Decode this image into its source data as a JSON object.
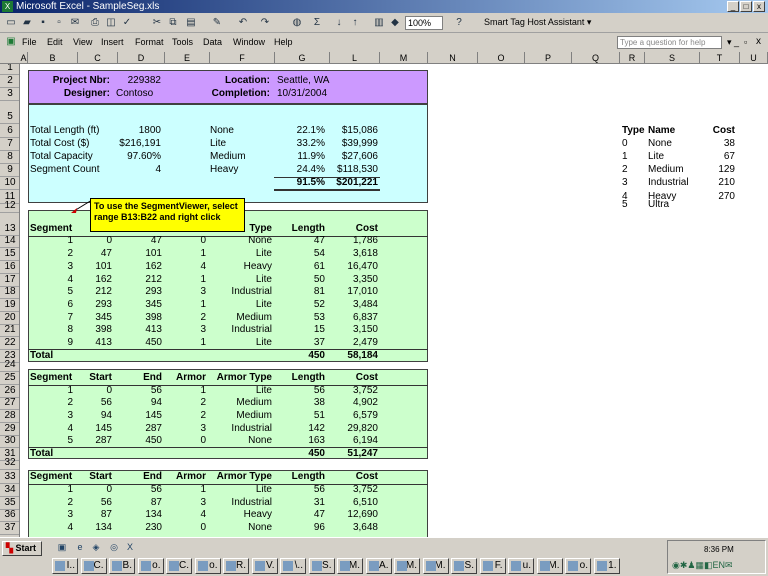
{
  "window": {
    "title": "Microsoft Excel - SampleSeg.xls",
    "zoom": "100%",
    "smart_tag": "Smart Tag Host Assistant ▾",
    "help_placeholder": "Type a question for help"
  },
  "menu": [
    "File",
    "Edit",
    "View",
    "Insert",
    "Format",
    "Tools",
    "Data",
    "Window",
    "Help"
  ],
  "columns": [
    "A",
    "B",
    "C",
    "D",
    "E",
    "F",
    "G",
    "L",
    "M",
    "N",
    "O",
    "P",
    "Q",
    "R",
    "S",
    "T",
    "U"
  ],
  "rows": [
    "1",
    "2",
    "3",
    "5",
    "6",
    "7",
    "8",
    "9",
    "10",
    "11",
    "12",
    "13",
    "14",
    "15",
    "16",
    "17",
    "18",
    "19",
    "20",
    "21",
    "22",
    "23",
    "24",
    "25",
    "26",
    "27",
    "28",
    "29",
    "30",
    "31",
    "32",
    "33",
    "34",
    "35",
    "36",
    "37"
  ],
  "header": {
    "project_label": "Project Nbr:",
    "project_value": "229382",
    "designer_label": "Designer:",
    "designer_value": "Contoso",
    "location_label": "Location:",
    "location_value": "Seattle, WA",
    "completion_label": "Completion:",
    "completion_value": "10/31/2004"
  },
  "summary": [
    {
      "label": "Total Length (ft)",
      "value": "1800",
      "type": "None",
      "pct": "22.1%",
      "cost": "$15,086"
    },
    {
      "label": "Total Cost ($)",
      "value": "$216,191",
      "type": "Lite",
      "pct": "33.2%",
      "cost": "$39,999"
    },
    {
      "label": "Total Capacity",
      "value": "97.60%",
      "type": "Medium",
      "pct": "11.9%",
      "cost": "$27,606"
    },
    {
      "label": "Segment Count",
      "value": "4",
      "type": "Heavy",
      "pct": "24.4%",
      "cost": "$118,530"
    }
  ],
  "summary_total": {
    "pct": "91.5%",
    "cost": "$201,221"
  },
  "comment": "To use the SegmentViewer, select range B13:B22 and right click",
  "table_headers": [
    "Segment",
    "Start",
    "End",
    "Armor",
    "Armor Type",
    "Length",
    "Cost"
  ],
  "table1": {
    "header_visible": [
      "Segment",
      "Type",
      "Length",
      "Cost"
    ],
    "rows": [
      [
        "1",
        "0",
        "47",
        "0",
        "None",
        "47",
        "1,786"
      ],
      [
        "2",
        "47",
        "101",
        "1",
        "Lite",
        "54",
        "3,618"
      ],
      [
        "3",
        "101",
        "162",
        "4",
        "Heavy",
        "61",
        "16,470"
      ],
      [
        "4",
        "162",
        "212",
        "1",
        "Lite",
        "50",
        "3,350"
      ],
      [
        "5",
        "212",
        "293",
        "3",
        "Industrial",
        "81",
        "17,010"
      ],
      [
        "6",
        "293",
        "345",
        "1",
        "Lite",
        "52",
        "3,484"
      ],
      [
        "7",
        "345",
        "398",
        "2",
        "Medium",
        "53",
        "6,837"
      ],
      [
        "8",
        "398",
        "413",
        "3",
        "Industrial",
        "15",
        "3,150"
      ],
      [
        "9",
        "413",
        "450",
        "1",
        "Lite",
        "37",
        "2,479"
      ]
    ],
    "total_label": "Total",
    "total_length": "450",
    "total_cost": "58,184"
  },
  "table2": {
    "rows": [
      [
        "1",
        "0",
        "56",
        "1",
        "Lite",
        "56",
        "3,752"
      ],
      [
        "2",
        "56",
        "94",
        "2",
        "Medium",
        "38",
        "4,902"
      ],
      [
        "3",
        "94",
        "145",
        "2",
        "Medium",
        "51",
        "6,579"
      ],
      [
        "4",
        "145",
        "287",
        "3",
        "Industrial",
        "142",
        "29,820"
      ],
      [
        "5",
        "287",
        "450",
        "0",
        "None",
        "163",
        "6,194"
      ]
    ],
    "total_label": "Total",
    "total_length": "450",
    "total_cost": "51,247"
  },
  "table3": {
    "rows": [
      [
        "1",
        "0",
        "56",
        "1",
        "Lite",
        "56",
        "3,752"
      ],
      [
        "2",
        "56",
        "87",
        "3",
        "Industrial",
        "31",
        "6,510"
      ],
      [
        "3",
        "87",
        "134",
        "4",
        "Heavy",
        "47",
        "12,690"
      ],
      [
        "4",
        "134",
        "230",
        "0",
        "None",
        "96",
        "3,648"
      ]
    ]
  },
  "lookup": {
    "headers": [
      "Type",
      "Name",
      "Cost"
    ],
    "rows": [
      [
        "0",
        "None",
        "38"
      ],
      [
        "1",
        "Lite",
        "67"
      ],
      [
        "2",
        "Medium",
        "129"
      ],
      [
        "3",
        "Industrial",
        "210"
      ],
      [
        "4",
        "Heavy",
        "270"
      ],
      [
        "5",
        "Ultra",
        ""
      ]
    ]
  },
  "taskbar": {
    "start": "Start",
    "clock": "8:36 PM",
    "tasks": [
      "I..",
      "C.",
      "B.",
      "o.",
      "C.",
      "o.",
      "R.",
      "V.",
      "\\..",
      "S.",
      "M.",
      "A.",
      "M.",
      "M.",
      "S.",
      "F.",
      "u.",
      "M.",
      "o.",
      "1."
    ]
  },
  "colors": {
    "purple": "#cc99ff",
    "cyan": "#ccffff",
    "green": "#ccffcc",
    "comment": "#ffff00"
  }
}
